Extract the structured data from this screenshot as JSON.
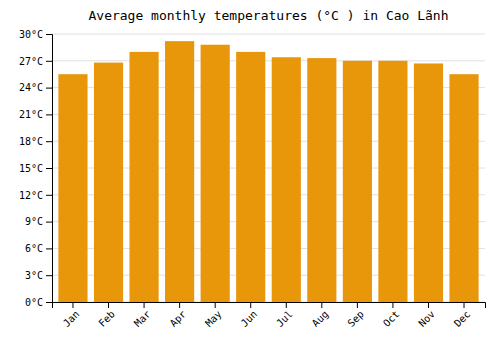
{
  "chart_data": {
    "type": "bar",
    "title": "Average monthly temperatures (°C ) in Cao Lãnh",
    "categories": [
      "Jan",
      "Feb",
      "Mar",
      "Apr",
      "May",
      "Jun",
      "Jul",
      "Aug",
      "Sep",
      "Oct",
      "Nov",
      "Dec"
    ],
    "values": [
      25.5,
      26.8,
      28.0,
      29.2,
      28.8,
      28.0,
      27.4,
      27.3,
      27.0,
      27.0,
      26.7,
      25.5
    ],
    "color": "#E8960A",
    "ylim": [
      0,
      30
    ],
    "yticks": [
      {
        "value": 0,
        "label": "0°C"
      },
      {
        "value": 3,
        "label": "3°C"
      },
      {
        "value": 6,
        "label": "6°C"
      },
      {
        "value": 9,
        "label": "9°C"
      },
      {
        "value": 12,
        "label": "12°C"
      },
      {
        "value": 15,
        "label": "15°C"
      },
      {
        "value": 18,
        "label": "18°C"
      },
      {
        "value": 21,
        "label": "21°C"
      },
      {
        "value": 24,
        "label": "24°C"
      },
      {
        "value": 27,
        "label": "27°C"
      },
      {
        "value": 30,
        "label": "30°C"
      }
    ],
    "grid": true
  }
}
